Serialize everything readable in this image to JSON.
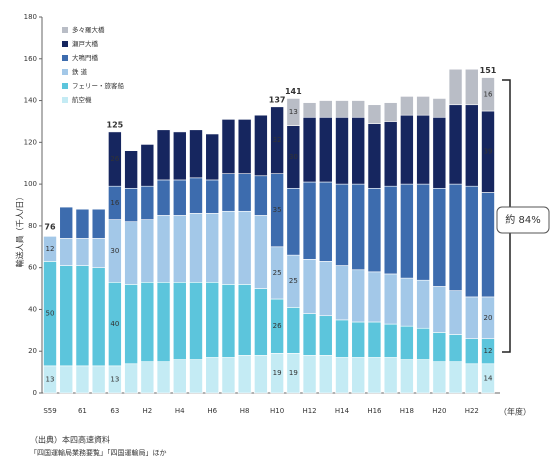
{
  "chart_data": {
    "type": "stacked_bar",
    "y_label": "輸送人員（千人/日）",
    "x_label": "（年度）",
    "categories": [
      "S59",
      null,
      "61",
      null,
      "63",
      null,
      "H2",
      null,
      "H4",
      null,
      "H6",
      null,
      "H8",
      null,
      "H10",
      null,
      "H12",
      null,
      "H14",
      null,
      "H16",
      null,
      "H18",
      null,
      "H20",
      null,
      "H22",
      null
    ],
    "ylim": [
      0,
      180
    ],
    "yticks": [
      0,
      20,
      40,
      60,
      80,
      100,
      120,
      140,
      160,
      180
    ],
    "series": [
      {
        "name": "航空機",
        "color": "#c4ebf4",
        "values": [
          13,
          13,
          13,
          13,
          13,
          14,
          15,
          15,
          16,
          16,
          17,
          17,
          18,
          18,
          19,
          19,
          18,
          18,
          17,
          17,
          17,
          17,
          16,
          16,
          15,
          15,
          14,
          14
        ],
        "value_labels": [
          "13",
          null,
          null,
          null,
          "13",
          null,
          null,
          null,
          null,
          null,
          null,
          null,
          null,
          null,
          "19",
          "19",
          null,
          null,
          null,
          null,
          null,
          null,
          null,
          null,
          null,
          null,
          null,
          "14"
        ]
      },
      {
        "name": "フェリー・旅客船",
        "color": "#5cc5dc",
        "values": [
          50,
          48,
          48,
          47,
          40,
          38,
          38,
          38,
          37,
          37,
          36,
          35,
          34,
          32,
          26,
          22,
          20,
          19,
          18,
          17,
          17,
          16,
          16,
          15,
          14,
          13,
          12,
          12
        ],
        "value_labels": [
          "50",
          null,
          null,
          null,
          "40",
          null,
          null,
          null,
          null,
          null,
          null,
          null,
          null,
          null,
          "26",
          null,
          null,
          null,
          null,
          null,
          null,
          null,
          null,
          null,
          null,
          null,
          null,
          "12"
        ]
      },
      {
        "name": "鉄 道",
        "color": "#a3c8e8",
        "values": [
          12,
          13,
          13,
          14,
          30,
          30,
          30,
          32,
          32,
          33,
          33,
          35,
          35,
          35,
          25,
          25,
          26,
          26,
          26,
          25,
          24,
          24,
          23,
          23,
          22,
          21,
          20,
          20
        ],
        "value_labels": [
          "12",
          null,
          null,
          null,
          "30",
          null,
          null,
          null,
          null,
          null,
          null,
          null,
          null,
          null,
          "25",
          "25",
          null,
          null,
          null,
          null,
          null,
          null,
          null,
          null,
          null,
          null,
          null,
          "20"
        ]
      },
      {
        "name": "大鳴門橋",
        "color": "#3d6cae",
        "values": [
          null,
          15,
          14,
          14,
          16,
          16,
          16,
          17,
          17,
          17,
          16,
          18,
          18,
          19,
          35,
          32,
          37,
          38,
          39,
          41,
          40,
          42,
          45,
          46,
          47,
          51,
          53,
          50
        ],
        "value_labels": [
          null,
          null,
          null,
          null,
          "16",
          null,
          null,
          null,
          null,
          null,
          null,
          null,
          null,
          null,
          "35",
          null,
          null,
          null,
          null,
          null,
          null,
          null,
          null,
          null,
          null,
          null,
          null,
          null
        ]
      },
      {
        "name": "瀬戸大橋",
        "color": "#16265f",
        "values": [
          null,
          null,
          null,
          null,
          26,
          18,
          20,
          24,
          23,
          23,
          22,
          26,
          26,
          29,
          32,
          30,
          31,
          31,
          32,
          32,
          31,
          31,
          33,
          33,
          34,
          38,
          39,
          39
        ],
        "value_labels": [
          null,
          null,
          null,
          null,
          "26",
          null,
          null,
          null,
          null,
          null,
          null,
          null,
          null,
          null,
          "32",
          "30",
          null,
          null,
          null,
          null,
          null,
          null,
          null,
          null,
          null,
          null,
          null,
          "39"
        ]
      },
      {
        "name": "多々羅大橋",
        "color": "#b9bdc6",
        "values": [
          null,
          null,
          null,
          null,
          null,
          null,
          null,
          null,
          null,
          null,
          null,
          null,
          null,
          null,
          null,
          13,
          7,
          8,
          8,
          8,
          9,
          9,
          9,
          9,
          9,
          17,
          17,
          16
        ],
        "value_labels": [
          null,
          null,
          null,
          null,
          null,
          null,
          null,
          null,
          null,
          null,
          null,
          null,
          null,
          null,
          null,
          "13",
          null,
          null,
          null,
          null,
          null,
          null,
          null,
          null,
          null,
          null,
          null,
          "16"
        ]
      }
    ],
    "totals": [
      76,
      null,
      null,
      null,
      125,
      null,
      null,
      null,
      null,
      null,
      null,
      null,
      null,
      null,
      137,
      141,
      null,
      null,
      null,
      null,
      null,
      null,
      null,
      null,
      null,
      null,
      null,
      151
    ],
    "annotation": "約 84%",
    "source": [
      "（出典）本四高速資料",
      "「四国運輸局業務要覧」「四国運輸局」ほか"
    ]
  }
}
